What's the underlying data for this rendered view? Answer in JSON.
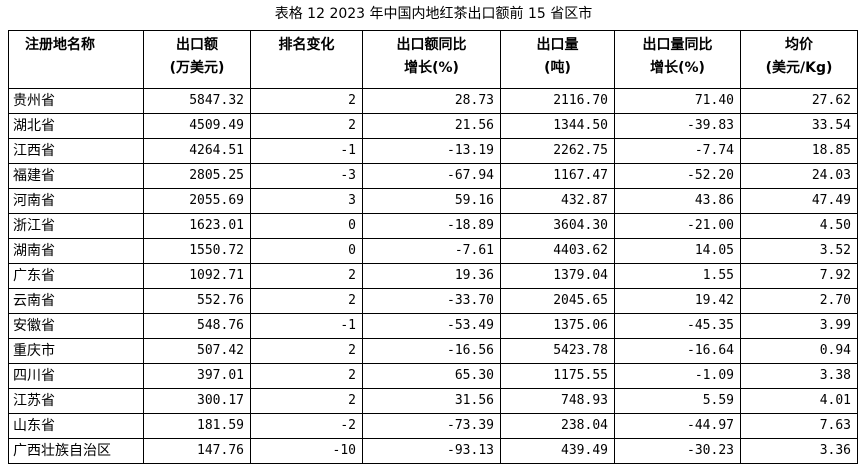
{
  "title": "表格 12 2023 年中国内地红茶出口额前 15 省区市",
  "table": {
    "header": [
      [
        "注册地名称"
      ],
      [
        "出口额",
        "(万美元)"
      ],
      [
        "排名变化"
      ],
      [
        "出口额同比",
        "增长(%)"
      ],
      [
        "出口量",
        "(吨)"
      ],
      [
        "出口量同比",
        "增长(%)"
      ],
      [
        "均价",
        "(美元/Kg)"
      ]
    ],
    "rows": [
      [
        "贵州省",
        "5847.32",
        "2",
        "28.73",
        "2116.70",
        "71.40",
        "27.62"
      ],
      [
        "湖北省",
        "4509.49",
        "2",
        "21.56",
        "1344.50",
        "-39.83",
        "33.54"
      ],
      [
        "江西省",
        "4264.51",
        "-1",
        "-13.19",
        "2262.75",
        "-7.74",
        "18.85"
      ],
      [
        "福建省",
        "2805.25",
        "-3",
        "-67.94",
        "1167.47",
        "-52.20",
        "24.03"
      ],
      [
        "河南省",
        "2055.69",
        "3",
        "59.16",
        "432.87",
        "43.86",
        "47.49"
      ],
      [
        "浙江省",
        "1623.01",
        "0",
        "-18.89",
        "3604.30",
        "-21.00",
        "4.50"
      ],
      [
        "湖南省",
        "1550.72",
        "0",
        "-7.61",
        "4403.62",
        "14.05",
        "3.52"
      ],
      [
        "广东省",
        "1092.71",
        "2",
        "19.36",
        "1379.04",
        "1.55",
        "7.92"
      ],
      [
        "云南省",
        "552.76",
        "2",
        "-33.70",
        "2045.65",
        "19.42",
        "2.70"
      ],
      [
        "安徽省",
        "548.76",
        "-1",
        "-53.49",
        "1375.06",
        "-45.35",
        "3.99"
      ],
      [
        "重庆市",
        "507.42",
        "2",
        "-16.56",
        "5423.78",
        "-16.64",
        "0.94"
      ],
      [
        "四川省",
        "397.01",
        "2",
        "65.30",
        "1175.55",
        "-1.09",
        "3.38"
      ],
      [
        "江苏省",
        "300.17",
        "2",
        "31.56",
        "748.93",
        "5.59",
        "4.01"
      ],
      [
        "山东省",
        "181.59",
        "-2",
        "-73.39",
        "238.04",
        "-44.97",
        "7.63"
      ],
      [
        "广西壮族自治区",
        "147.76",
        "-10",
        "-93.13",
        "439.49",
        "-30.23",
        "3.36"
      ]
    ]
  }
}
